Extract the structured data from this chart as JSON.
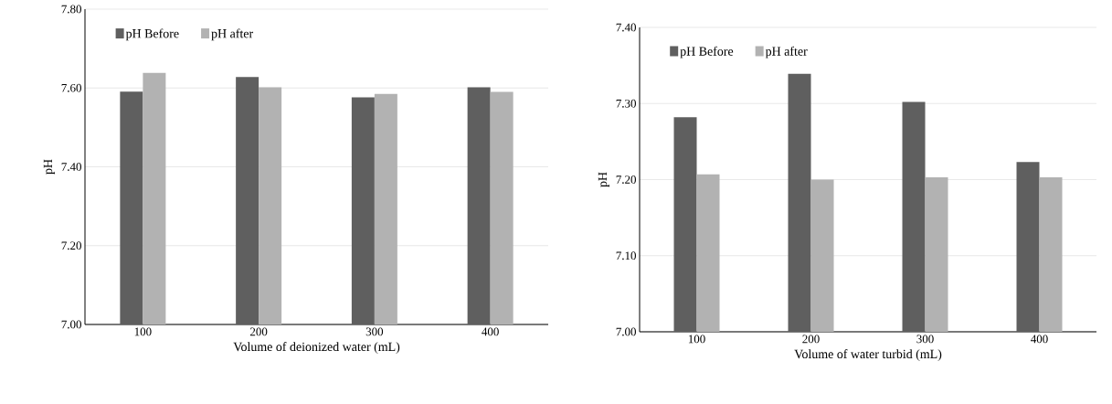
{
  "chart_data": [
    {
      "type": "bar",
      "xlabel": "Volume of deionized water (mL)",
      "ylabel": "pH",
      "categories": [
        "100",
        "200",
        "300",
        "400"
      ],
      "series": [
        {
          "name": "pH Before",
          "color": "#5f5f5f",
          "values": [
            7.591,
            7.628,
            7.576,
            7.602
          ]
        },
        {
          "name": "pH after",
          "color": "#b2b2b2",
          "values": [
            7.638,
            7.602,
            7.585,
            7.59
          ]
        }
      ],
      "ylim": [
        7.0,
        7.8
      ],
      "yticks": [
        {
          "value": 7.0,
          "label": "7.00"
        },
        {
          "value": 7.2,
          "label": "7.20"
        },
        {
          "value": 7.4,
          "label": "7.40"
        },
        {
          "value": 7.6,
          "label": "7.60"
        },
        {
          "value": 7.8,
          "label": "7.80"
        }
      ],
      "grid": "y",
      "legend": "top left"
    },
    {
      "type": "bar",
      "xlabel": "Volume of water turbid (mL)",
      "ylabel": "pH",
      "categories": [
        "100",
        "200",
        "300",
        "400"
      ],
      "series": [
        {
          "name": "pH Before",
          "color": "#5f5f5f",
          "values": [
            7.282,
            7.339,
            7.302,
            7.223
          ]
        },
        {
          "name": "pH after",
          "color": "#b2b2b2",
          "values": [
            7.207,
            7.2,
            7.203,
            7.203
          ]
        }
      ],
      "ylim": [
        7.0,
        7.4
      ],
      "yticks": [
        {
          "value": 7.0,
          "label": "7.00"
        },
        {
          "value": 7.1,
          "label": "7.10"
        },
        {
          "value": 7.2,
          "label": "7.20"
        },
        {
          "value": 7.3,
          "label": "7.30"
        },
        {
          "value": 7.4,
          "label": "7.40"
        }
      ],
      "grid": "y",
      "legend": "top left"
    }
  ]
}
